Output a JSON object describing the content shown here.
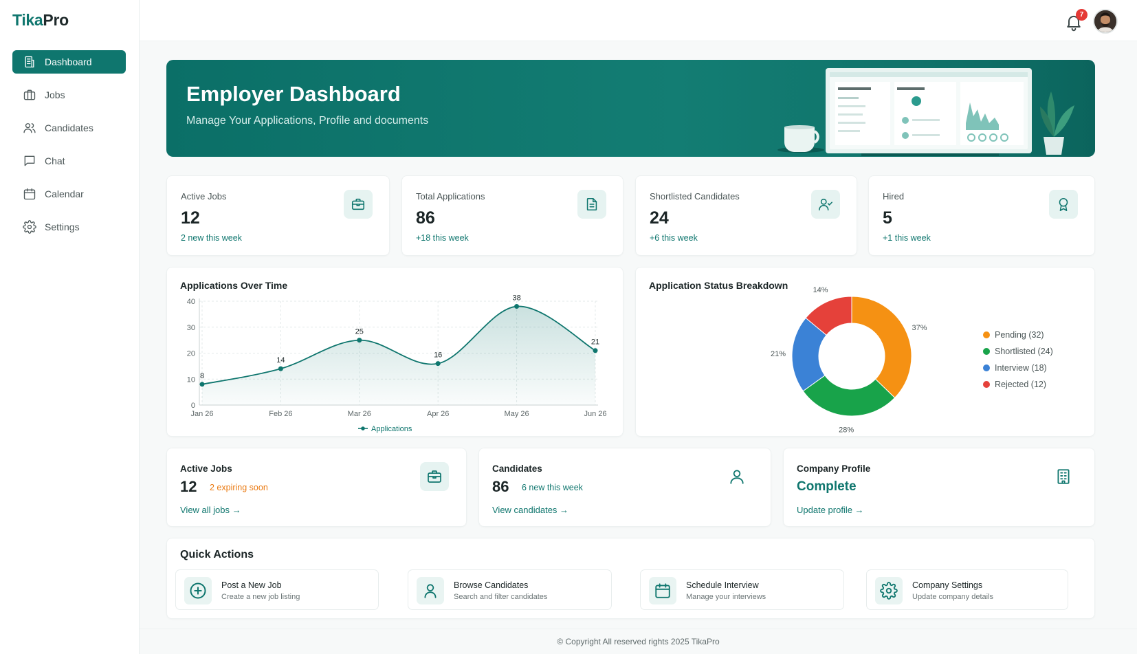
{
  "brand": {
    "part1": "Tika",
    "part2": "Pro",
    "accent": "#0f766e"
  },
  "sidebar": {
    "items": [
      {
        "label": "Dashboard",
        "icon": "building-icon",
        "active": true
      },
      {
        "label": "Jobs",
        "icon": "briefcase-icon"
      },
      {
        "label": "Candidates",
        "icon": "users-icon"
      },
      {
        "label": "Chat",
        "icon": "chat-icon"
      },
      {
        "label": "Calendar",
        "icon": "calendar-icon"
      },
      {
        "label": "Settings",
        "icon": "gear-icon"
      }
    ]
  },
  "topbar": {
    "notifications": "7"
  },
  "hero": {
    "title": "Employer Dashboard",
    "subtitle": "Manage Your Applications, Profile and documents"
  },
  "stats": [
    {
      "label": "Active Jobs",
      "value": "12",
      "sub": "2 new this week",
      "icon": "briefcase-icon"
    },
    {
      "label": "Total Applications",
      "value": "86",
      "sub": "+18 this week",
      "icon": "document-icon"
    },
    {
      "label": "Shortlisted Candidates",
      "value": "24",
      "sub": "+6 this week",
      "icon": "user-check-icon"
    },
    {
      "label": "Hired",
      "value": "5",
      "sub": "+1 this week",
      "icon": "award-icon"
    }
  ],
  "line_chart_title": "Applications Over Time",
  "donut_title": "Application Status Breakdown",
  "chart_data": [
    {
      "type": "line",
      "title": "Applications Over Time",
      "categories": [
        "Jan 26",
        "Feb 26",
        "Mar 26",
        "Apr 26",
        "May 26",
        "Jun 26"
      ],
      "series": [
        {
          "name": "Applications",
          "values": [
            8,
            14,
            25,
            16,
            38,
            21
          ],
          "color": "#0f766e"
        }
      ],
      "ylim": [
        0,
        40
      ],
      "yticks": [
        "0",
        "10",
        "20",
        "30",
        "40"
      ],
      "grid": true,
      "legend": "bottom"
    },
    {
      "type": "pie",
      "title": "Application Status Breakdown",
      "slices": [
        {
          "label": "Pending (32)",
          "value": 32,
          "pct": "37%",
          "color": "#f59113"
        },
        {
          "label": "Shortlisted (24)",
          "value": 24,
          "pct": "28%",
          "color": "#18a34a"
        },
        {
          "label": "Interview (18)",
          "value": 18,
          "pct": "21%",
          "color": "#3b82d6"
        },
        {
          "label": "Rejected (12)",
          "value": 12,
          "pct": "14%",
          "color": "#e5413a"
        }
      ],
      "legend": "right"
    }
  ],
  "summary": {
    "jobs": {
      "title": "Active Jobs",
      "value": "12",
      "extra": "2 expiring soon",
      "extra_color": "#ea7a12",
      "link": "View all jobs →"
    },
    "candidates": {
      "title": "Candidates",
      "value": "86",
      "extra": "6 new this week",
      "extra_color": "#0f766e",
      "link": "View candidates →"
    },
    "company": {
      "title": "Company Profile",
      "value": "Complete",
      "link": "Update profile →"
    }
  },
  "quick_actions": {
    "title": "Quick Actions",
    "items": [
      {
        "label": "Post a New Job",
        "desc": "Create a new job listing",
        "icon": "plus-circle-icon"
      },
      {
        "label": "Browse Candidates",
        "desc": "Search and filter candidates",
        "icon": "user-icon"
      },
      {
        "label": "Schedule Interview",
        "desc": "Manage your interviews",
        "icon": "calendar-icon"
      },
      {
        "label": "Company Settings",
        "desc": "Update company details",
        "icon": "gear-icon"
      }
    ]
  },
  "footer": "© Copyright All reserved rights 2025 TikaPro"
}
